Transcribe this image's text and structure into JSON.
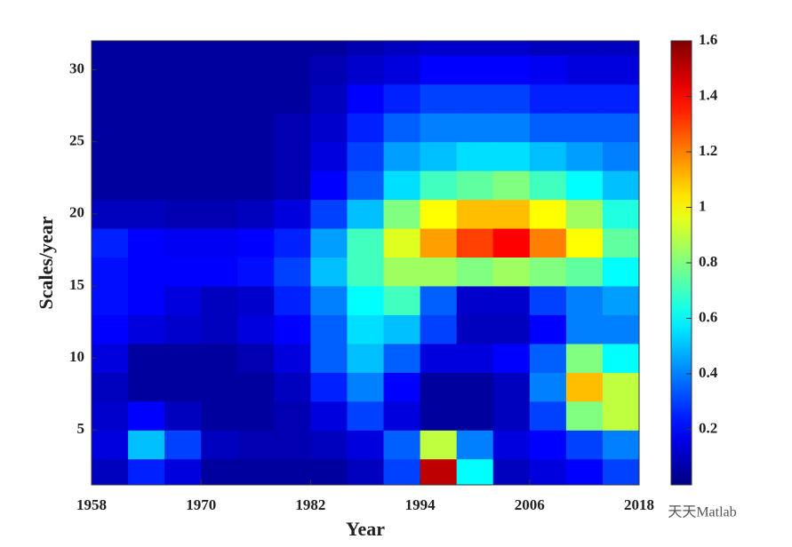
{
  "chart_data": {
    "type": "contour",
    "x_label": "Year",
    "y_label": "Scales/year",
    "x": [
      1958,
      1962,
      1966,
      1970,
      1974,
      1978,
      1982,
      1986,
      1990,
      1994,
      1998,
      2002,
      2006,
      2010,
      2014,
      2018
    ],
    "y": [
      1.2,
      3,
      5,
      7,
      9,
      11,
      13,
      15,
      17,
      19,
      21,
      23,
      25,
      27,
      29,
      31,
      32
    ],
    "z": [
      [
        0.1,
        0.25,
        0.15,
        0.05,
        0.05,
        0.05,
        0.05,
        0.1,
        0.3,
        1.5,
        0.6,
        0.1,
        0.15,
        0.2,
        0.3
      ],
      [
        0.15,
        0.5,
        0.3,
        0.1,
        0.08,
        0.08,
        0.1,
        0.15,
        0.35,
        0.9,
        0.4,
        0.15,
        0.2,
        0.3,
        0.4
      ],
      [
        0.12,
        0.2,
        0.1,
        0.05,
        0.05,
        0.08,
        0.15,
        0.3,
        0.15,
        0.05,
        0.05,
        0.1,
        0.3,
        0.8,
        0.9
      ],
      [
        0.1,
        0.05,
        0.05,
        0.05,
        0.05,
        0.1,
        0.25,
        0.4,
        0.2,
        0.05,
        0.05,
        0.1,
        0.4,
        1.1,
        0.9
      ],
      [
        0.15,
        0.05,
        0.05,
        0.05,
        0.08,
        0.15,
        0.35,
        0.5,
        0.35,
        0.15,
        0.15,
        0.2,
        0.35,
        0.8,
        0.6
      ],
      [
        0.2,
        0.15,
        0.12,
        0.1,
        0.15,
        0.2,
        0.35,
        0.55,
        0.5,
        0.3,
        0.1,
        0.1,
        0.2,
        0.4,
        0.4
      ],
      [
        0.22,
        0.2,
        0.15,
        0.1,
        0.12,
        0.25,
        0.4,
        0.6,
        0.7,
        0.35,
        0.12,
        0.12,
        0.3,
        0.4,
        0.45
      ],
      [
        0.22,
        0.2,
        0.2,
        0.2,
        0.22,
        0.3,
        0.5,
        0.7,
        0.85,
        0.85,
        0.8,
        0.85,
        0.8,
        0.75,
        0.6
      ],
      [
        0.25,
        0.2,
        0.18,
        0.18,
        0.2,
        0.25,
        0.45,
        0.7,
        0.95,
        1.15,
        1.3,
        1.4,
        1.2,
        1.0,
        0.75
      ],
      [
        0.1,
        0.1,
        0.08,
        0.08,
        0.1,
        0.15,
        0.3,
        0.5,
        0.8,
        1.0,
        1.1,
        1.1,
        1.0,
        0.85,
        0.65
      ],
      [
        0.05,
        0.05,
        0.05,
        0.05,
        0.05,
        0.08,
        0.2,
        0.35,
        0.55,
        0.7,
        0.75,
        0.8,
        0.7,
        0.6,
        0.5
      ],
      [
        0.05,
        0.05,
        0.05,
        0.05,
        0.05,
        0.08,
        0.15,
        0.3,
        0.45,
        0.5,
        0.55,
        0.55,
        0.5,
        0.45,
        0.4
      ],
      [
        0.05,
        0.05,
        0.05,
        0.05,
        0.05,
        0.08,
        0.12,
        0.25,
        0.35,
        0.4,
        0.4,
        0.4,
        0.35,
        0.35,
        0.35
      ],
      [
        0.05,
        0.05,
        0.05,
        0.05,
        0.05,
        0.05,
        0.1,
        0.2,
        0.25,
        0.3,
        0.3,
        0.3,
        0.25,
        0.25,
        0.25
      ],
      [
        0.05,
        0.05,
        0.05,
        0.05,
        0.05,
        0.05,
        0.08,
        0.12,
        0.15,
        0.2,
        0.2,
        0.2,
        0.18,
        0.15,
        0.15
      ],
      [
        0.05,
        0.05,
        0.05,
        0.05,
        0.05,
        0.05,
        0.05,
        0.08,
        0.1,
        0.12,
        0.12,
        0.12,
        0.1,
        0.1,
        0.1
      ]
    ],
    "xlim": [
      1958,
      2018
    ],
    "xticks": [
      1958,
      1970,
      1982,
      1994,
      2006,
      2018
    ],
    "ylim": [
      1.2,
      32
    ],
    "yticks": [
      5,
      10,
      15,
      20,
      25,
      30
    ],
    "clim": [
      0,
      1.6
    ],
    "cticks": [
      0.2,
      0.4,
      0.6,
      0.8,
      1,
      1.2,
      1.4,
      1.6
    ],
    "colormap": "jet",
    "watermark": "天天Matlab"
  }
}
